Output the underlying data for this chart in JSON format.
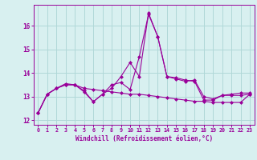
{
  "x": [
    0,
    1,
    2,
    3,
    4,
    5,
    6,
    7,
    8,
    9,
    10,
    11,
    12,
    13,
    14,
    15,
    16,
    17,
    18,
    19,
    20,
    21,
    22,
    23
  ],
  "line1": [
    12.3,
    13.1,
    13.35,
    13.5,
    13.5,
    13.2,
    12.78,
    13.1,
    13.5,
    13.6,
    13.3,
    14.7,
    16.5,
    15.55,
    13.85,
    13.8,
    13.7,
    13.65,
    12.85,
    12.85,
    13.05,
    13.1,
    13.15,
    13.15
  ],
  "line2": [
    12.3,
    13.1,
    13.35,
    13.55,
    13.5,
    13.25,
    12.78,
    13.1,
    13.35,
    13.85,
    14.45,
    13.85,
    16.55,
    15.55,
    13.85,
    13.75,
    13.65,
    13.7,
    13.0,
    12.9,
    13.05,
    13.05,
    13.05,
    13.1
  ],
  "line3": [
    12.3,
    13.1,
    13.35,
    13.5,
    13.5,
    13.35,
    13.3,
    13.25,
    13.2,
    13.15,
    13.1,
    13.1,
    13.05,
    13.0,
    12.95,
    12.9,
    12.85,
    12.8,
    12.8,
    12.75,
    12.75,
    12.75,
    12.75,
    13.1
  ],
  "color": "#990099",
  "bg_color": "#d8f0f0",
  "grid_color": "#b0d8d8",
  "xlabel": "Windchill (Refroidissement éolien,°C)",
  "ylim": [
    11.8,
    16.9
  ],
  "xlim_min": -0.5,
  "xlim_max": 23.5,
  "yticks": [
    12,
    13,
    14,
    15,
    16
  ],
  "xticks": [
    0,
    1,
    2,
    3,
    4,
    5,
    6,
    7,
    8,
    9,
    10,
    11,
    12,
    13,
    14,
    15,
    16,
    17,
    18,
    19,
    20,
    21,
    22,
    23
  ]
}
